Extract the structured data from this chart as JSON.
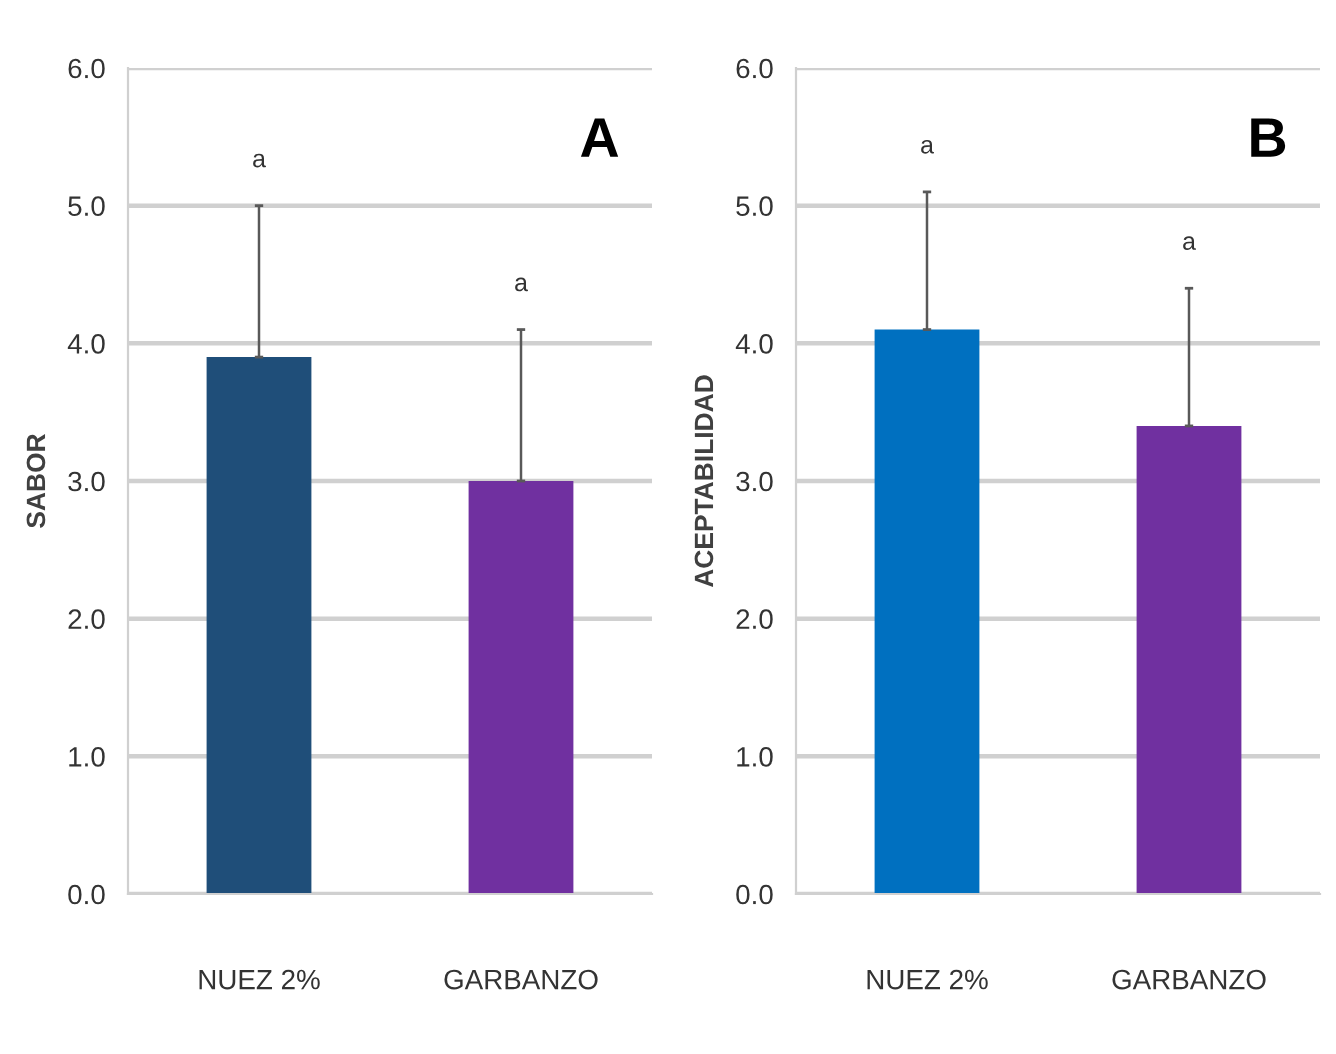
{
  "chart_data": [
    {
      "type": "bar",
      "categories": [
        "NUEZ 2%",
        "GARBANZO"
      ],
      "values": [
        3.9,
        3.0
      ],
      "colors": [
        "#1f4e79",
        "#7030a0"
      ],
      "errors": [
        [
          3.9,
          5.0
        ],
        [
          3.0,
          4.1
        ]
      ],
      "ylabel": "SABOR",
      "ylim": [
        0,
        6
      ],
      "yticks": [
        {
          "value": 0,
          "label": "0.0"
        },
        {
          "value": 1,
          "label": "1.0"
        },
        {
          "value": 2,
          "label": "2.0"
        },
        {
          "value": 3,
          "label": "3.0"
        },
        {
          "value": 4,
          "label": "4.0"
        },
        {
          "value": 5,
          "label": "5.0"
        },
        {
          "value": 6,
          "label": "6.0"
        }
      ],
      "grid": "y",
      "annotations": [
        "A",
        "a",
        "a"
      ]
    },
    {
      "type": "bar",
      "categories": [
        "NUEZ 2%",
        "GARBANZO"
      ],
      "values": [
        4.1,
        3.4
      ],
      "colors": [
        "#0070c0",
        "#7030a0"
      ],
      "errors": [
        [
          4.1,
          5.1
        ],
        [
          3.4,
          4.4
        ]
      ],
      "ylabel": "ACEPTABILIDAD",
      "ylim": [
        0,
        6
      ],
      "yticks": [
        {
          "value": 0,
          "label": "0.0"
        },
        {
          "value": 1,
          "label": "1.0"
        },
        {
          "value": 2,
          "label": "2.0"
        },
        {
          "value": 3,
          "label": "3.0"
        },
        {
          "value": 4,
          "label": "4.0"
        },
        {
          "value": 5,
          "label": "5.0"
        },
        {
          "value": 6,
          "label": "6.0"
        }
      ],
      "grid": "y",
      "annotations": [
        "B",
        "a",
        "a"
      ]
    }
  ]
}
